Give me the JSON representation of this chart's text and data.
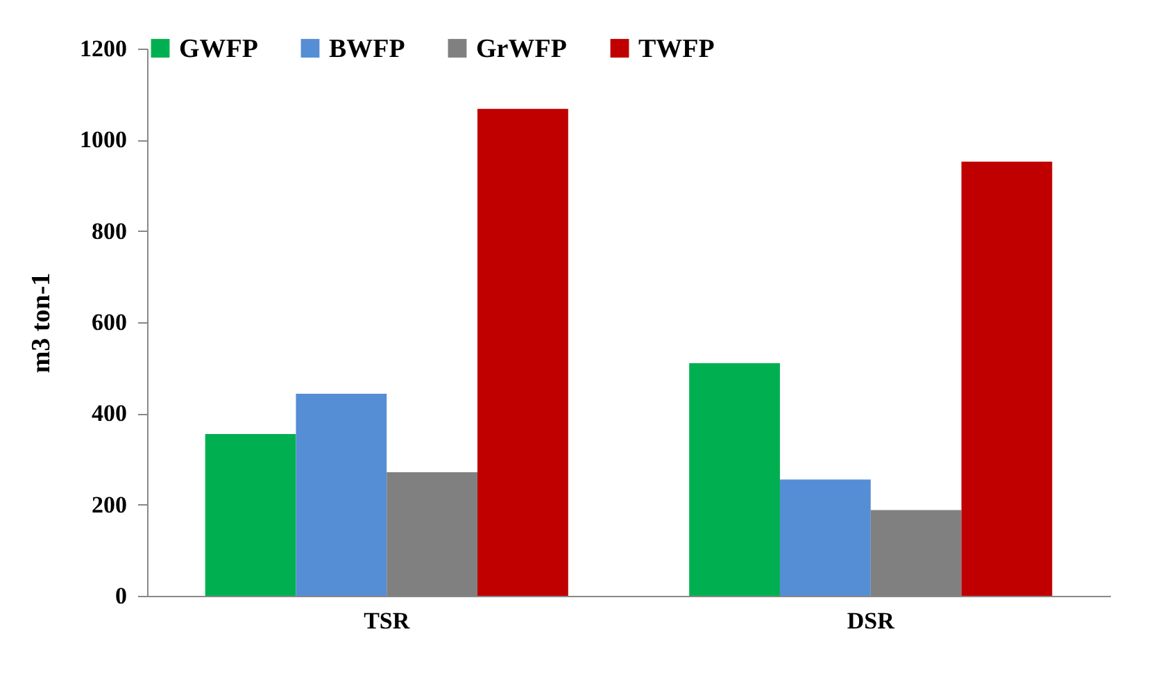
{
  "chart_data": {
    "type": "bar",
    "ylabel": "m3 ton-1",
    "categories": [
      "TSR",
      "DSR"
    ],
    "series": [
      {
        "name": "GWFP",
        "color": "#00b050",
        "values": [
          355,
          510
        ]
      },
      {
        "name": "BWFP",
        "color": "#558ed5",
        "values": [
          443,
          255
        ]
      },
      {
        "name": "GrWFP",
        "color": "#808080",
        "values": [
          271,
          188
        ]
      },
      {
        "name": "TWFP",
        "color": "#c00000",
        "values": [
          1068,
          952
        ]
      }
    ],
    "ylim": [
      0,
      1200
    ],
    "yticks": [
      0,
      200,
      400,
      600,
      800,
      1000,
      1200
    ],
    "grid": false,
    "legend": "top"
  }
}
